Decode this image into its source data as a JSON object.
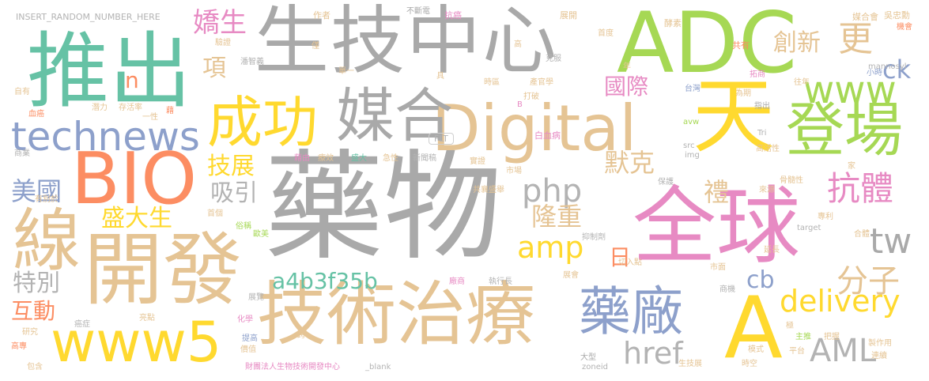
{
  "words": {
    "w1": "生技中心",
    "w2": "藥物",
    "w3": "推出",
    "w4": "ADC",
    "w5": "全球",
    "w6": "開發",
    "w7": "線",
    "w8": "技術治療",
    "w9": "BIO",
    "w10": "Digital",
    "w11": "成功",
    "w12": "媒合",
    "w13": "天",
    "w14": "登場",
    "w15": "technews",
    "w16": "www5",
    "w17": "藥廠",
    "w18": "A",
    "w19": "www",
    "w20": "delivery",
    "w21": "AML",
    "w22": "amp",
    "w23": "php",
    "w24": "a4b3f35b",
    "w25": "抗體",
    "w26": "分子",
    "w27": "tw",
    "w28": "href",
    "w29": "更",
    "w30": "創新",
    "w31": "嬌生",
    "w32": "ck",
    "w33": "國際",
    "w34": "默克",
    "w35": "吸引",
    "w36": "技展",
    "w37": "美國",
    "w38": "盛大生",
    "w39": "隆重",
    "w40": "禮",
    "w41": "特別",
    "w42": "互動",
    "w43": "日",
    "w44": "cb",
    "w45": "n",
    "w46": "項",
    "w47": "INSERT_RANDOM_NUMBER_HERE",
    "w48": "作者",
    "w49": "不斷電",
    "w50": "抗癌",
    "w51": "展開",
    "w52": "吳忠勳",
    "w53": "機會",
    "w54": "媒合會",
    "w55": "酵素",
    "w56": "共有",
    "w57": "首度",
    "w58": "高",
    "w59": "mannosyl",
    "w60": "小時",
    "w61": "往年",
    "w62": "拓商",
    "w63": "台灣",
    "w64": "為期",
    "w65": "指出",
    "w66": "Tri",
    "w67": "高活性",
    "w68": "家",
    "w69": "骨髓性",
    "w70": "專利",
    "w71": "合體",
    "w72": "target",
    "w73": "來源",
    "w74": "保護",
    "w75": "src",
    "w76": "img",
    "w77": "avw",
    "w78": "白血病",
    "w79": "市場",
    "w80": "實證",
    "w81": "共襄盛舉",
    "w82": "急性",
    "w83": "新聞稿",
    "w84": "盛大",
    "w85": "療效",
    "w86": "藉由",
    "w87": "FLT",
    "w88": "打破",
    "w89": "時區",
    "w90": "產官學",
    "w91": "具",
    "w92": "克服",
    "w93": "年",
    "w94": "單一",
    "w95": "潘智義",
    "w96": "僅",
    "w97": "驗證",
    "w98": "自有",
    "w99": "潛力",
    "w100": "存活率",
    "w101": "藉",
    "w102": "血癌",
    "w103": "一性",
    "w104": "商業",
    "w105": "有別於",
    "w106": "首個",
    "w107": "俗稱",
    "w108": "歐美",
    "w109": "抑制劑",
    "w110": "切入點",
    "w111": "延長",
    "w112": "市面",
    "w113": "廠商",
    "w114": "展會",
    "w115": "執行長",
    "w116": "展覽",
    "w117": "化學",
    "w118": "亮點",
    "w119": "癌症",
    "w120": "研究",
    "w121": "高專",
    "w122": "提高",
    "w123": "價值",
    "w124": "跨",
    "w125": "包含",
    "w126": "財團法人生物技術開發中心",
    "w127": "_blank",
    "w128": "大型",
    "w129": "zoneid",
    "w130": "生技展",
    "w131": "時空",
    "w132": "平台",
    "w133": "主推",
    "w134": "把握",
    "w135": "模式",
    "w136": "極",
    "w137": "商機",
    "w138": "製作用",
    "w139": "連續",
    "w140": "B"
  }
}
